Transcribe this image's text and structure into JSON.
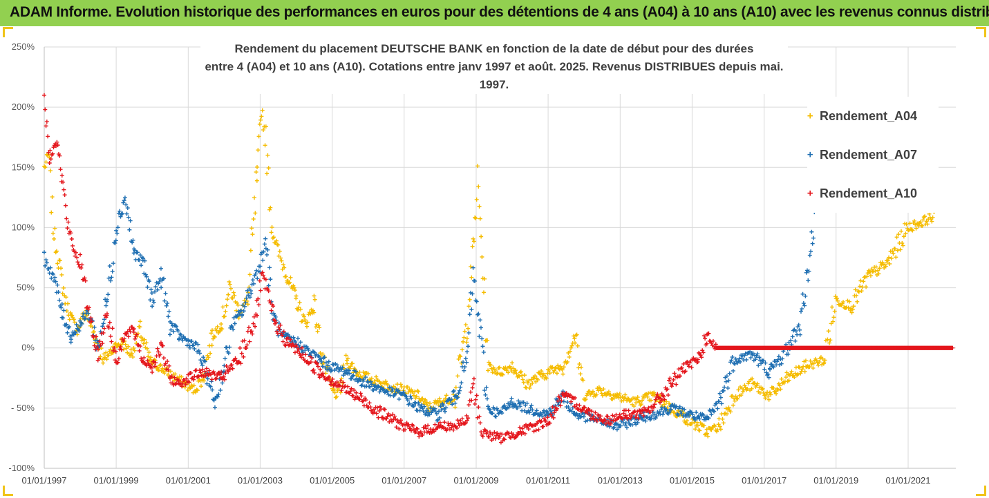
{
  "header": {
    "title": "ADAM Informe. Evolution historique des performances en euros pour des détentions de 4 ans (A04) à 10 ans (A10) avec les revenus connus distribués"
  },
  "colors": {
    "header_bg": "#92d050",
    "A04": "#f5bc00",
    "A07": "#1f6fb2",
    "A10": "#e4161c",
    "grid": "#d9d9d9"
  },
  "chart_data": {
    "type": "scatter",
    "title": "Rendement du placement DEUTSCHE BANK en fonction de la date de début pour des durées",
    "subtitle": "entre 4 (A04) et 10 ans (A10). Cotations entre janv 1997 et août. 2025. Revenus DISTRIBUES depuis mai. 1997.",
    "marker": "+",
    "legend_position": "right",
    "grid": true,
    "ylim": [
      -100,
      250
    ],
    "y_ticks": [
      "250%",
      "200%",
      "150%",
      "100%",
      "50%",
      "0%",
      "- 50%",
      "-100%"
    ],
    "y_tick_values": [
      250,
      200,
      150,
      100,
      50,
      0,
      -50,
      -100
    ],
    "xlim": [
      "1997-01-01",
      "2022-04-30"
    ],
    "x_ticks": [
      "01/01/1997",
      "01/01/1999",
      "01/01/2001",
      "01/01/2003",
      "01/01/2005",
      "01/01/2007",
      "01/01/2009",
      "01/01/2011",
      "01/01/2013",
      "01/01/2015",
      "01/01/2017",
      "01/01/2019",
      "01/01/2021"
    ],
    "x_tick_values": [
      "1997-01-01",
      "1999-01-01",
      "2001-01-01",
      "2003-01-01",
      "2005-01-01",
      "2007-01-01",
      "2009-01-01",
      "2011-01-01",
      "2013-01-01",
      "2015-01-01",
      "2017-01-01",
      "2019-01-01",
      "2021-01-01"
    ],
    "series": [
      {
        "name": "Rendement_A04",
        "color": "#f5bc00",
        "points": [
          [
            "1997-01-01",
            150
          ],
          [
            "1997-02-15",
            160
          ],
          [
            "1997-04-01",
            100
          ],
          [
            "1997-06-01",
            70
          ],
          [
            "1997-08-01",
            40
          ],
          [
            "1997-10-01",
            25
          ],
          [
            "1997-12-01",
            15
          ],
          [
            "1998-03-01",
            30
          ],
          [
            "1998-06-01",
            10
          ],
          [
            "1998-09-01",
            -10
          ],
          [
            "1998-12-01",
            0
          ],
          [
            "1999-03-01",
            5
          ],
          [
            "1999-06-01",
            -5
          ],
          [
            "1999-09-01",
            15
          ],
          [
            "1999-12-01",
            -10
          ],
          [
            "2000-03-01",
            -15
          ],
          [
            "2000-06-01",
            -20
          ],
          [
            "2000-09-01",
            -25
          ],
          [
            "2000-12-01",
            -30
          ],
          [
            "2001-03-01",
            -35
          ],
          [
            "2001-06-01",
            -25
          ],
          [
            "2001-09-01",
            10
          ],
          [
            "2001-12-01",
            20
          ],
          [
            "2002-03-01",
            50
          ],
          [
            "2002-06-01",
            30
          ],
          [
            "2002-09-01",
            40
          ],
          [
            "2002-12-01",
            140
          ],
          [
            "2003-01-15",
            200
          ],
          [
            "2003-03-01",
            170
          ],
          [
            "2003-05-01",
            100
          ],
          [
            "2003-07-01",
            80
          ],
          [
            "2003-10-01",
            60
          ],
          [
            "2004-01-01",
            40
          ],
          [
            "2004-04-01",
            20
          ],
          [
            "2004-07-01",
            35
          ],
          [
            "2004-10-01",
            -10
          ],
          [
            "2005-01-01",
            -35
          ],
          [
            "2005-03-01",
            -40
          ],
          [
            "2005-06-01",
            -10
          ],
          [
            "2005-09-01",
            -20
          ],
          [
            "2006-01-01",
            -25
          ],
          [
            "2006-06-01",
            -30
          ],
          [
            "2007-01-01",
            -35
          ],
          [
            "2007-06-01",
            -40
          ],
          [
            "2007-09-01",
            -50
          ],
          [
            "2008-01-01",
            -45
          ],
          [
            "2008-06-01",
            -40
          ],
          [
            "2008-10-01",
            20
          ],
          [
            "2008-12-01",
            80
          ],
          [
            "2009-01-15",
            140
          ],
          [
            "2009-03-01",
            80
          ],
          [
            "2009-05-01",
            -15
          ],
          [
            "2009-09-01",
            -20
          ],
          [
            "2010-01-01",
            -15
          ],
          [
            "2010-06-01",
            -30
          ],
          [
            "2011-01-01",
            -20
          ],
          [
            "2011-06-01",
            -15
          ],
          [
            "2011-10-01",
            10
          ],
          [
            "2012-01-01",
            -40
          ],
          [
            "2012-06-01",
            -35
          ],
          [
            "2012-12-01",
            -40
          ],
          [
            "2013-06-01",
            -45
          ],
          [
            "2013-12-01",
            -40
          ],
          [
            "2014-06-01",
            -50
          ],
          [
            "2014-12-01",
            -60
          ],
          [
            "2015-06-01",
            -70
          ],
          [
            "2015-10-01",
            -65
          ],
          [
            "2016-03-01",
            -40
          ],
          [
            "2016-09-01",
            -30
          ],
          [
            "2017-03-01",
            -40
          ],
          [
            "2017-09-01",
            -25
          ],
          [
            "2018-03-01",
            -15
          ],
          [
            "2018-09-01",
            -10
          ],
          [
            "2019-01-01",
            40
          ],
          [
            "2019-06-01",
            35
          ],
          [
            "2019-12-01",
            60
          ],
          [
            "2020-06-01",
            70
          ],
          [
            "2021-01-01",
            100
          ],
          [
            "2021-06-01",
            105
          ],
          [
            "2021-10-01",
            110
          ]
        ]
      },
      {
        "name": "Rendement_A07",
        "color": "#1f6fb2",
        "points": [
          [
            "1997-01-01",
            75
          ],
          [
            "1997-04-01",
            60
          ],
          [
            "1997-07-01",
            30
          ],
          [
            "1997-10-01",
            10
          ],
          [
            "1998-01-01",
            20
          ],
          [
            "1998-04-01",
            30
          ],
          [
            "1998-07-01",
            0
          ],
          [
            "1998-10-01",
            40
          ],
          [
            "1999-01-01",
            100
          ],
          [
            "1999-04-01",
            125
          ],
          [
            "1999-07-01",
            80
          ],
          [
            "1999-10-01",
            70
          ],
          [
            "2000-01-01",
            40
          ],
          [
            "2000-04-01",
            60
          ],
          [
            "2000-07-01",
            20
          ],
          [
            "2000-10-01",
            10
          ],
          [
            "2001-01-01",
            5
          ],
          [
            "2001-04-01",
            0
          ],
          [
            "2001-07-01",
            -20
          ],
          [
            "2001-10-01",
            -45
          ],
          [
            "2002-01-01",
            -15
          ],
          [
            "2002-04-01",
            20
          ],
          [
            "2002-07-01",
            30
          ],
          [
            "2002-10-01",
            50
          ],
          [
            "2003-01-01",
            70
          ],
          [
            "2003-03-01",
            90
          ],
          [
            "2003-05-01",
            30
          ],
          [
            "2003-08-01",
            10
          ],
          [
            "2004-01-01",
            5
          ],
          [
            "2004-06-01",
            -5
          ],
          [
            "2004-12-01",
            -15
          ],
          [
            "2005-06-01",
            -20
          ],
          [
            "2006-01-01",
            -30
          ],
          [
            "2006-06-01",
            -35
          ],
          [
            "2007-01-01",
            -40
          ],
          [
            "2007-06-01",
            -50
          ],
          [
            "2007-12-01",
            -55
          ],
          [
            "2008-06-01",
            -40
          ],
          [
            "2008-10-01",
            -10
          ],
          [
            "2008-12-01",
            60
          ],
          [
            "2009-02-01",
            20
          ],
          [
            "2009-05-01",
            -50
          ],
          [
            "2009-09-01",
            -55
          ],
          [
            "2010-01-01",
            -45
          ],
          [
            "2010-06-01",
            -50
          ],
          [
            "2011-01-01",
            -55
          ],
          [
            "2011-06-01",
            -40
          ],
          [
            "2011-10-01",
            -55
          ],
          [
            "2012-06-01",
            -60
          ],
          [
            "2012-12-01",
            -65
          ],
          [
            "2013-06-01",
            -60
          ],
          [
            "2013-12-01",
            -55
          ],
          [
            "2014-06-01",
            -50
          ],
          [
            "2014-12-01",
            -55
          ],
          [
            "2015-06-01",
            -60
          ],
          [
            "2015-10-01",
            -45
          ],
          [
            "2016-03-01",
            -10
          ],
          [
            "2016-09-01",
            -5
          ],
          [
            "2017-03-01",
            -20
          ],
          [
            "2017-09-01",
            0
          ],
          [
            "2018-01-01",
            20
          ],
          [
            "2018-04-01",
            70
          ],
          [
            "2018-06-01",
            110
          ]
        ]
      },
      {
        "name": "Rendement_A10",
        "color": "#e4161c",
        "points": [
          [
            "1997-01-01",
            200
          ],
          [
            "1997-03-01",
            160
          ],
          [
            "1997-05-01",
            175
          ],
          [
            "1997-07-01",
            140
          ],
          [
            "1997-09-01",
            100
          ],
          [
            "1997-11-01",
            80
          ],
          [
            "1998-01-01",
            70
          ],
          [
            "1998-04-01",
            30
          ],
          [
            "1998-07-01",
            -5
          ],
          [
            "1998-10-01",
            30
          ],
          [
            "1999-01-01",
            -10
          ],
          [
            "1999-04-01",
            10
          ],
          [
            "1999-07-01",
            15
          ],
          [
            "1999-10-01",
            -10
          ],
          [
            "2000-01-01",
            -15
          ],
          [
            "2000-04-01",
            0
          ],
          [
            "2000-07-01",
            -25
          ],
          [
            "2000-10-01",
            -30
          ],
          [
            "2001-01-01",
            -25
          ],
          [
            "2001-06-01",
            -20
          ],
          [
            "2001-12-01",
            -25
          ],
          [
            "2002-06-01",
            -10
          ],
          [
            "2002-12-01",
            30
          ],
          [
            "2003-01-15",
            60
          ],
          [
            "2003-03-01",
            50
          ],
          [
            "2003-06-01",
            20
          ],
          [
            "2003-10-01",
            5
          ],
          [
            "2004-03-01",
            -5
          ],
          [
            "2004-09-01",
            -20
          ],
          [
            "2005-03-01",
            -30
          ],
          [
            "2005-09-01",
            -40
          ],
          [
            "2006-06-01",
            -55
          ],
          [
            "2007-01-01",
            -65
          ],
          [
            "2007-06-01",
            -70
          ],
          [
            "2008-01-01",
            -65
          ],
          [
            "2008-06-01",
            -65
          ],
          [
            "2008-10-01",
            -60
          ],
          [
            "2008-12-01",
            -30
          ],
          [
            "2009-03-01",
            -70
          ],
          [
            "2009-09-01",
            -75
          ],
          [
            "2010-03-01",
            -70
          ],
          [
            "2010-09-01",
            -65
          ],
          [
            "2011-01-01",
            -60
          ],
          [
            "2011-06-01",
            -40
          ],
          [
            "2011-10-01",
            -45
          ],
          [
            "2012-03-01",
            -55
          ],
          [
            "2012-09-01",
            -60
          ],
          [
            "2013-03-01",
            -55
          ],
          [
            "2013-09-01",
            -55
          ],
          [
            "2014-03-01",
            -40
          ],
          [
            "2014-09-01",
            -20
          ],
          [
            "2015-03-01",
            -10
          ],
          [
            "2015-06-01",
            10
          ],
          [
            "2015-09-01",
            0
          ],
          [
            "2022-04-01",
            0
          ]
        ]
      }
    ]
  }
}
